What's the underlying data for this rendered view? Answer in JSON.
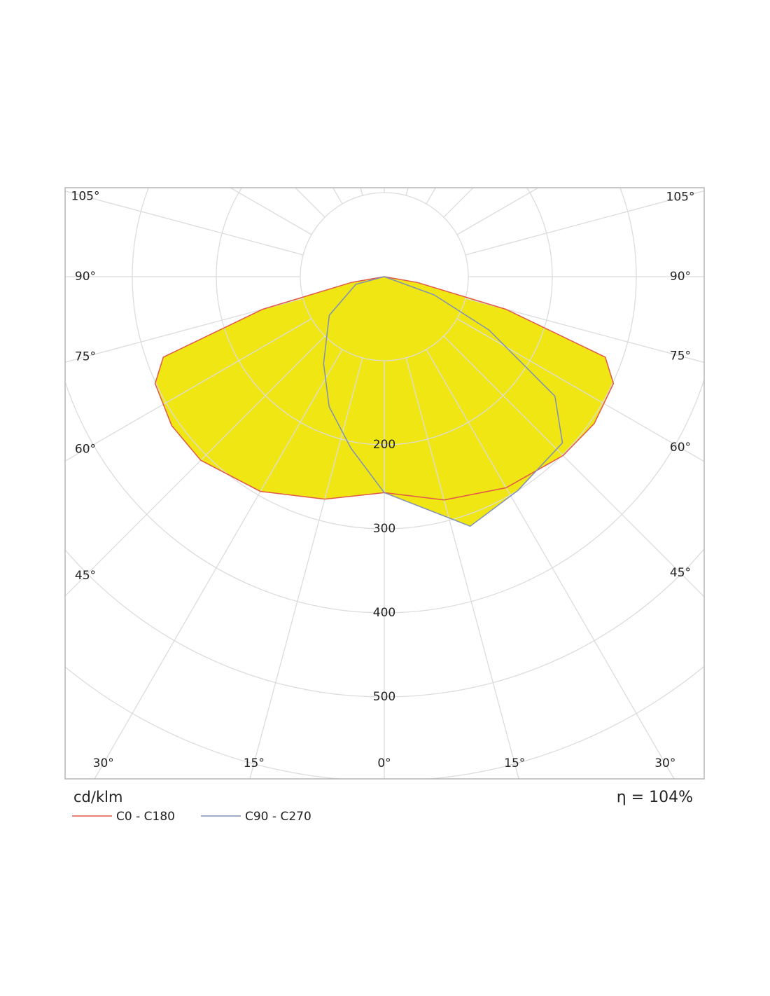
{
  "chart_data": {
    "type": "polar",
    "unit": "cd/klm",
    "efficiency": "η = 104%",
    "fill": "#f0e614",
    "rlim": [
      0,
      600
    ],
    "rticks": [
      {
        "value": 100,
        "label": null
      },
      200,
      300,
      400,
      500,
      {
        "value": 600,
        "label": null
      }
    ],
    "gamma_ticks": [
      {
        "value": 0,
        "label": "0°"
      },
      {
        "value": 15,
        "label": "15°"
      },
      {
        "value": 30,
        "label": "30°"
      },
      {
        "value": 45,
        "label": "45°"
      },
      {
        "value": 60,
        "label": "60°"
      },
      {
        "value": 75,
        "label": "75°"
      },
      {
        "value": 90,
        "label": "90°"
      },
      {
        "value": 105,
        "label": "105°"
      }
    ],
    "series": [
      {
        "name": "C0 - C180",
        "color": "#e0584a",
        "x": [
          -90,
          -80,
          -75,
          -70,
          -65,
          -55,
          -45,
          -30,
          -15,
          0,
          15,
          30,
          45,
          55,
          65,
          70,
          75,
          80,
          90
        ],
        "values": [
          0,
          40,
          150,
          280,
          301,
          309,
          309,
          295,
          274,
          257,
          275,
          290,
          301,
          305,
          301,
          280,
          150,
          40,
          0
        ]
      },
      {
        "name": "C90 - C270",
        "color": "#7f8fb8",
        "x": [
          -90,
          -75,
          -55,
          -35,
          -23,
          -11,
          0,
          19,
          32,
          47,
          55,
          63,
          70,
          90
        ],
        "values": [
          0,
          35,
          80,
          126,
          168,
          208,
          257,
          314,
          300,
          290,
          248,
          140,
          63,
          0
        ]
      }
    ]
  }
}
